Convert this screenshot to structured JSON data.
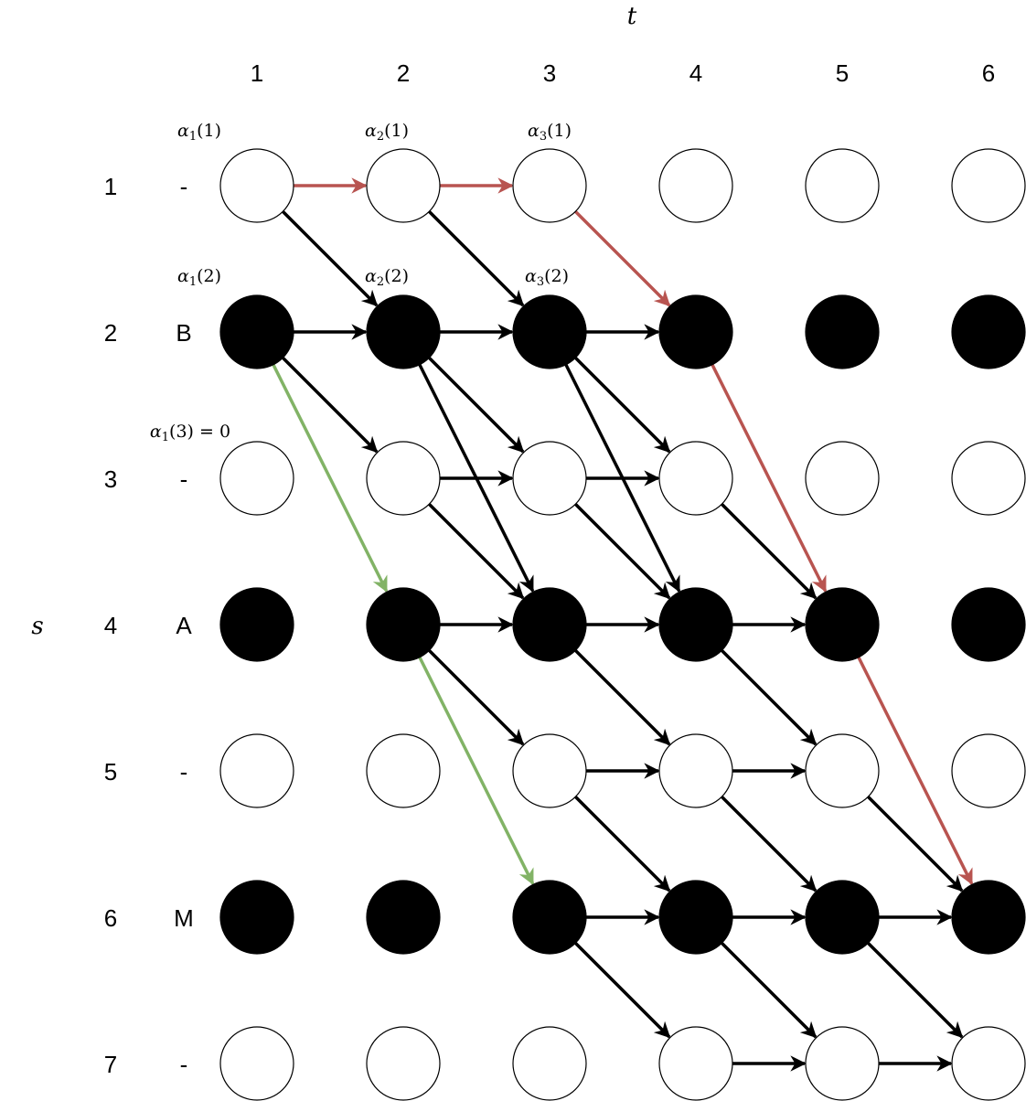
{
  "axes": {
    "t_label": "t",
    "s_label": "s"
  },
  "time_steps": [
    "1",
    "2",
    "3",
    "4",
    "5",
    "6"
  ],
  "state_indices": [
    "1",
    "2",
    "3",
    "4",
    "5",
    "6",
    "7"
  ],
  "state_symbols": [
    "-",
    "B",
    "-",
    "A",
    "-",
    "M",
    "-"
  ],
  "filled_nodes": [
    [
      2,
      1
    ],
    [
      2,
      2
    ],
    [
      2,
      3
    ],
    [
      2,
      4
    ],
    [
      2,
      5
    ],
    [
      2,
      6
    ],
    [
      4,
      1
    ],
    [
      4,
      2
    ],
    [
      4,
      3
    ],
    [
      4,
      4
    ],
    [
      4,
      5
    ],
    [
      4,
      6
    ],
    [
      6,
      1
    ],
    [
      6,
      2
    ],
    [
      6,
      3
    ],
    [
      6,
      4
    ],
    [
      6,
      5
    ],
    [
      6,
      6
    ]
  ],
  "annotations": [
    {
      "id": "a1-1",
      "greek": "α",
      "sub": "1",
      "arg": "(1)",
      "suffix": ""
    },
    {
      "id": "a2-1",
      "greek": "α",
      "sub": "2",
      "arg": "(1)",
      "suffix": ""
    },
    {
      "id": "a3-1",
      "greek": "α",
      "sub": "3",
      "arg": "(1)",
      "suffix": ""
    },
    {
      "id": "a1-2",
      "greek": "α",
      "sub": "1",
      "arg": "(2)",
      "suffix": ""
    },
    {
      "id": "a2-2",
      "greek": "α",
      "sub": "2",
      "arg": "(2)",
      "suffix": ""
    },
    {
      "id": "a3-2",
      "greek": "α",
      "sub": "3",
      "arg": "(2)",
      "suffix": ""
    },
    {
      "id": "a1-3",
      "greek": "α",
      "sub": "1",
      "arg": "(3)",
      "suffix": " = 0"
    }
  ],
  "colors": {
    "black": "#000000",
    "red": "#b85450",
    "green": "#82b366",
    "node_stroke": "#000000",
    "node_empty": "#ffffff"
  },
  "edges": [
    {
      "from": [
        1,
        1
      ],
      "to": [
        1,
        2
      ],
      "color": "red"
    },
    {
      "from": [
        1,
        2
      ],
      "to": [
        1,
        3
      ],
      "color": "red"
    },
    {
      "from": [
        1,
        3
      ],
      "to": [
        2,
        4
      ],
      "color": "red"
    },
    {
      "from": [
        2,
        4
      ],
      "to": [
        4,
        5
      ],
      "color": "red"
    },
    {
      "from": [
        4,
        5
      ],
      "to": [
        6,
        6
      ],
      "color": "red"
    },
    {
      "from": [
        2,
        1
      ],
      "to": [
        4,
        2
      ],
      "color": "green"
    },
    {
      "from": [
        4,
        2
      ],
      "to": [
        6,
        3
      ],
      "color": "green"
    },
    {
      "from": [
        1,
        1
      ],
      "to": [
        2,
        2
      ],
      "color": "black"
    },
    {
      "from": [
        1,
        2
      ],
      "to": [
        2,
        3
      ],
      "color": "black"
    },
    {
      "from": [
        2,
        1
      ],
      "to": [
        2,
        2
      ],
      "color": "black"
    },
    {
      "from": [
        2,
        2
      ],
      "to": [
        2,
        3
      ],
      "color": "black"
    },
    {
      "from": [
        2,
        3
      ],
      "to": [
        2,
        4
      ],
      "color": "black"
    },
    {
      "from": [
        2,
        1
      ],
      "to": [
        3,
        2
      ],
      "color": "black"
    },
    {
      "from": [
        2,
        2
      ],
      "to": [
        3,
        3
      ],
      "color": "black"
    },
    {
      "from": [
        2,
        3
      ],
      "to": [
        3,
        4
      ],
      "color": "black"
    },
    {
      "from": [
        2,
        2
      ],
      "to": [
        4,
        3
      ],
      "color": "black"
    },
    {
      "from": [
        2,
        3
      ],
      "to": [
        4,
        4
      ],
      "color": "black"
    },
    {
      "from": [
        3,
        2
      ],
      "to": [
        3,
        3
      ],
      "color": "black"
    },
    {
      "from": [
        3,
        3
      ],
      "to": [
        3,
        4
      ],
      "color": "black"
    },
    {
      "from": [
        3,
        2
      ],
      "to": [
        4,
        3
      ],
      "color": "black"
    },
    {
      "from": [
        3,
        3
      ],
      "to": [
        4,
        4
      ],
      "color": "black"
    },
    {
      "from": [
        3,
        4
      ],
      "to": [
        4,
        5
      ],
      "color": "black"
    },
    {
      "from": [
        4,
        2
      ],
      "to": [
        4,
        3
      ],
      "color": "black"
    },
    {
      "from": [
        4,
        3
      ],
      "to": [
        4,
        4
      ],
      "color": "black"
    },
    {
      "from": [
        4,
        4
      ],
      "to": [
        4,
        5
      ],
      "color": "black"
    },
    {
      "from": [
        4,
        2
      ],
      "to": [
        5,
        3
      ],
      "color": "black"
    },
    {
      "from": [
        4,
        3
      ],
      "to": [
        5,
        4
      ],
      "color": "black"
    },
    {
      "from": [
        4,
        4
      ],
      "to": [
        5,
        5
      ],
      "color": "black"
    },
    {
      "from": [
        5,
        3
      ],
      "to": [
        5,
        4
      ],
      "color": "black"
    },
    {
      "from": [
        5,
        4
      ],
      "to": [
        5,
        5
      ],
      "color": "black"
    },
    {
      "from": [
        5,
        3
      ],
      "to": [
        6,
        4
      ],
      "color": "black"
    },
    {
      "from": [
        5,
        4
      ],
      "to": [
        6,
        5
      ],
      "color": "black"
    },
    {
      "from": [
        5,
        5
      ],
      "to": [
        6,
        6
      ],
      "color": "black"
    },
    {
      "from": [
        6,
        3
      ],
      "to": [
        6,
        4
      ],
      "color": "black"
    },
    {
      "from": [
        6,
        4
      ],
      "to": [
        6,
        5
      ],
      "color": "black"
    },
    {
      "from": [
        6,
        5
      ],
      "to": [
        6,
        6
      ],
      "color": "black"
    },
    {
      "from": [
        6,
        3
      ],
      "to": [
        7,
        4
      ],
      "color": "black"
    },
    {
      "from": [
        6,
        4
      ],
      "to": [
        7,
        5
      ],
      "color": "black"
    },
    {
      "from": [
        6,
        5
      ],
      "to": [
        7,
        6
      ],
      "color": "black"
    },
    {
      "from": [
        7,
        4
      ],
      "to": [
        7,
        5
      ],
      "color": "black"
    },
    {
      "from": [
        7,
        5
      ],
      "to": [
        7,
        6
      ],
      "color": "black"
    }
  ]
}
